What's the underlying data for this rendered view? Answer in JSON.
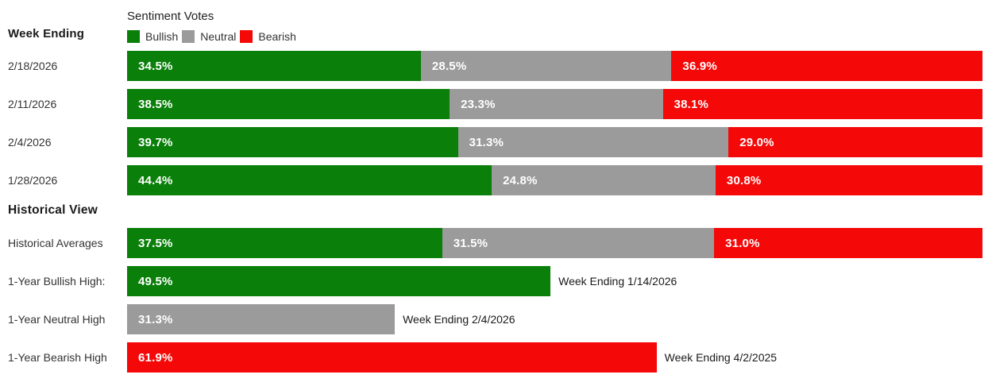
{
  "header": {
    "week_ending_label": "Week Ending",
    "chart_title": "Sentiment Votes",
    "legend": [
      {
        "label": "Bullish",
        "color": "#0a7f0a"
      },
      {
        "label": "Neutral",
        "color": "#9b9b9b"
      },
      {
        "label": "Bearish",
        "color": "#f40808"
      }
    ]
  },
  "chart_data": {
    "type": "bar",
    "orientation": "horizontal-stacked",
    "title": "Sentiment Votes",
    "categories": [
      "2/18/2026",
      "2/11/2026",
      "2/4/2026",
      "1/28/2026"
    ],
    "series": [
      {
        "name": "Bullish",
        "color": "#0a7f0a",
        "values": [
          34.5,
          38.5,
          39.7,
          44.4
        ]
      },
      {
        "name": "Neutral",
        "color": "#9b9b9b",
        "values": [
          28.5,
          23.3,
          31.3,
          24.8
        ]
      },
      {
        "name": "Bearish",
        "color": "#f40808",
        "values": [
          36.9,
          38.1,
          29.0,
          30.8
        ]
      }
    ],
    "xlim": [
      0,
      100
    ],
    "value_format": "percent",
    "legend_position": "top",
    "grid": false,
    "historical": {
      "averages": {
        "bullish": 37.5,
        "neutral": 31.5,
        "bearish": 31.0
      },
      "one_year_bullish_high": {
        "value": 49.5,
        "week_ending": "1/14/2026"
      },
      "one_year_neutral_high": {
        "value": 31.3,
        "week_ending": "2/4/2026"
      },
      "one_year_bearish_high": {
        "value": 61.9,
        "week_ending": "4/2/2025"
      }
    }
  },
  "rows": [
    {
      "date": "2/18/2026",
      "bullish": {
        "pct": 34.5,
        "label": "34.5%"
      },
      "neutral": {
        "pct": 28.5,
        "label": "28.5%"
      },
      "bearish": {
        "pct": 36.9,
        "label": "36.9%"
      }
    },
    {
      "date": "2/11/2026",
      "bullish": {
        "pct": 38.5,
        "label": "38.5%"
      },
      "neutral": {
        "pct": 23.3,
        "label": "23.3%"
      },
      "bearish": {
        "pct": 38.1,
        "label": "38.1%"
      }
    },
    {
      "date": "2/4/2026",
      "bullish": {
        "pct": 39.7,
        "label": "39.7%"
      },
      "neutral": {
        "pct": 31.3,
        "label": "31.3%"
      },
      "bearish": {
        "pct": 29.0,
        "label": "29.0%"
      }
    },
    {
      "date": "1/28/2026",
      "bullish": {
        "pct": 44.4,
        "label": "44.4%"
      },
      "neutral": {
        "pct": 24.8,
        "label": "24.8%"
      },
      "bearish": {
        "pct": 30.8,
        "label": "30.8%"
      }
    }
  ],
  "historical": {
    "section_title": "Historical View",
    "averages": {
      "label": "Historical Averages",
      "bullish": {
        "pct": 37.5,
        "label": "37.5%"
      },
      "neutral": {
        "pct": 31.5,
        "label": "31.5%"
      },
      "bearish": {
        "pct": 31.0,
        "label": "31.0%"
      }
    },
    "highs": [
      {
        "label": "1-Year Bullish High:",
        "pct": 49.5,
        "value_label": "49.5%",
        "annotation": "Week Ending 1/14/2026"
      },
      {
        "label": "1-Year Neutral High",
        "pct": 31.3,
        "value_label": "31.3%",
        "annotation": "Week Ending 2/4/2026"
      },
      {
        "label": "1-Year Bearish High",
        "pct": 61.9,
        "value_label": "61.9%",
        "annotation": "Week Ending 4/2/2025"
      }
    ]
  }
}
